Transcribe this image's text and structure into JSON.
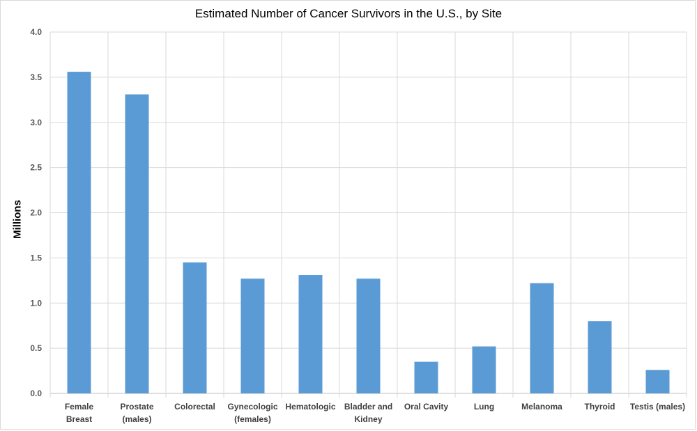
{
  "chart_data": {
    "type": "bar",
    "title": "Estimated Number of Cancer Survivors in the U.S., by Site",
    "xlabel": "",
    "ylabel": "Millions",
    "ylim": [
      0,
      4.0
    ],
    "yticks": [
      "0.0",
      "0.5",
      "1.0",
      "1.5",
      "2.0",
      "2.5",
      "3.0",
      "3.5",
      "4.0"
    ],
    "grid": true,
    "bar_color": "#5b9bd5",
    "categories": [
      [
        "Female",
        "Breast"
      ],
      [
        "Prostate",
        "(males)"
      ],
      [
        "Colorectal"
      ],
      [
        "Gynecologic",
        "(females)"
      ],
      [
        "Hematologic"
      ],
      [
        "Bladder and",
        "Kidney"
      ],
      [
        "Oral Cavity"
      ],
      [
        "Lung"
      ],
      [
        "Melanoma"
      ],
      [
        "Thyroid"
      ],
      [
        "Testis (males)"
      ]
    ],
    "values": [
      3.56,
      3.31,
      1.45,
      1.27,
      1.31,
      1.27,
      0.35,
      0.52,
      1.22,
      0.8,
      0.26
    ]
  }
}
